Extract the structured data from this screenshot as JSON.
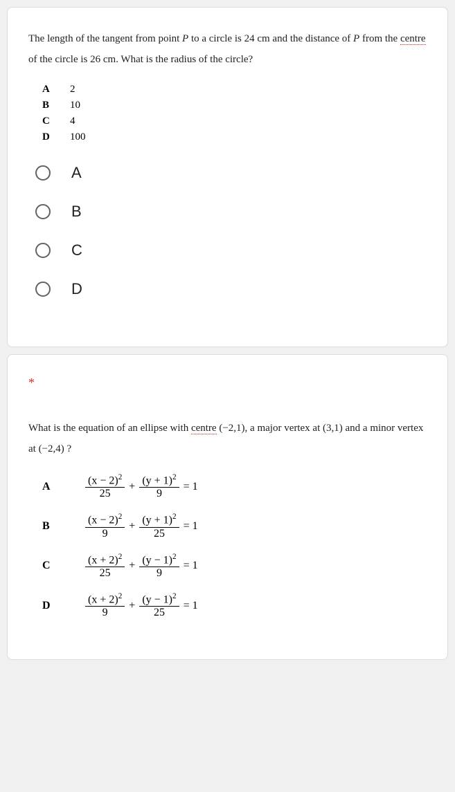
{
  "question1": {
    "text_parts": {
      "p1": "The length of the tangent from point ",
      "italic_P1": "P",
      "p2": " to a circle is 24 cm and the distance of ",
      "italic_P2": "P",
      "p3": " from the ",
      "underlined": "centre",
      "p4": " of the circle is 26 cm. What is the radius of the circle?"
    },
    "answers": [
      {
        "label": "A",
        "value": "2"
      },
      {
        "label": "B",
        "value": "10"
      },
      {
        "label": "C",
        "value": "4"
      },
      {
        "label": "D",
        "value": "100"
      }
    ],
    "options": [
      "A",
      "B",
      "C",
      "D"
    ]
  },
  "question2": {
    "required_mark": "*",
    "text_parts": {
      "p1": "What is the equation of an ellipse with ",
      "underlined": "centre",
      "coord1": " (−2,1)",
      "p2": ",  a major vertex at ",
      "coord2": "(3,1)",
      "p3": " and a minor vertex at ",
      "coord3": "(−2,4)",
      "p4": " ?"
    },
    "equations": [
      {
        "label": "A",
        "n1": "(x − 2)",
        "sup": "2",
        "d1": "25",
        "n2": "(y + 1)",
        "d2": "9"
      },
      {
        "label": "B",
        "n1": "(x − 2)",
        "sup": "2",
        "d1": "9",
        "n2": "(y + 1)",
        "d2": "25"
      },
      {
        "label": "C",
        "n1": "(x + 2)",
        "sup": "2",
        "d1": "25",
        "n2": "(y − 1)",
        "d2": "9"
      },
      {
        "label": "D",
        "n1": "(x + 2)",
        "sup": "2",
        "d1": "9",
        "n2": "(y − 1)",
        "d2": "25"
      }
    ],
    "plus": "+",
    "equals": "= 1"
  },
  "colors": {
    "card_bg": "#ffffff",
    "page_bg": "#f0f0f0",
    "text": "#202124",
    "radio_border": "#5f6368",
    "required": "#d93025",
    "underline": "#c5221f"
  }
}
